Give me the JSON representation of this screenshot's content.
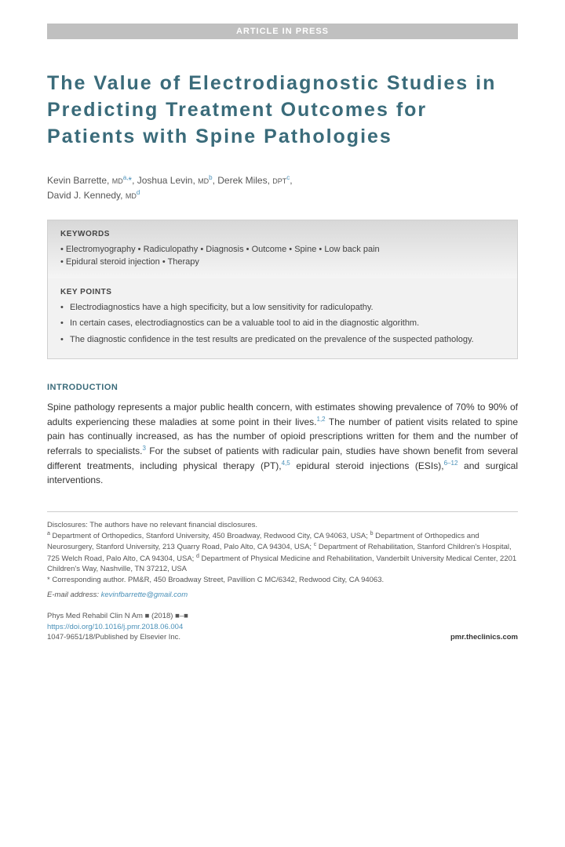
{
  "banner": "ARTICLE IN PRESS",
  "title": "The Value of Electrodiagnostic Studies in Predicting Treatment Outcomes for Patients with Spine Pathologies",
  "authors": [
    {
      "name": "Kevin Barrette",
      "degree": "MD",
      "aff": "a,",
      "star": "*"
    },
    {
      "name": "Joshua Levin",
      "degree": "MD",
      "aff": "b",
      "star": ""
    },
    {
      "name": "Derek Miles",
      "degree": "DPT",
      "aff": "c",
      "star": ""
    },
    {
      "name": "David J. Kennedy",
      "degree": "MD",
      "aff": "d",
      "star": ""
    }
  ],
  "keywords_heading": "KEYWORDS",
  "keywords": [
    "Electromyography",
    "Radiculopathy",
    "Diagnosis",
    "Outcome",
    "Spine",
    "Low back pain",
    "Epidural steroid injection",
    "Therapy"
  ],
  "keypoints_heading": "KEY POINTS",
  "keypoints": [
    "Electrodiagnostics have a high specificity, but a low sensitivity for radiculopathy.",
    "In certain cases, electrodiagnostics can be a valuable tool to aid in the diagnostic algorithm.",
    "The diagnostic confidence in the test results are predicated on the prevalence of the suspected pathology."
  ],
  "intro_heading": "INTRODUCTION",
  "intro_parts": {
    "p1": "Spine pathology represents a major public health concern, with estimates showing prevalence of 70% to 90% of adults experiencing these maladies at some point in their lives.",
    "ref1": "1,2",
    "p2": " The number of patient visits related to spine pain has continually increased, as has the number of opioid prescriptions written for them and the number of referrals to specialists.",
    "ref2": "3",
    "p3": " For the subset of patients with radicular pain, studies have shown benefit from several different treatments, including physical therapy (PT),",
    "ref3": "4,5",
    "p4": " epidural steroid injections (ESIs),",
    "ref4": "6–12",
    "p5": " and surgical interventions."
  },
  "footer": {
    "disclosure": "Disclosures: The authors have no relevant financial disclosures.",
    "aff_a": " Department of Orthopedics, Stanford University, 450 Broadway, Redwood City, CA 94063, USA; ",
    "aff_b": " Department of Orthopedics and Neurosurgery, Stanford University, 213 Quarry Road, Palo Alto, CA 94304, USA; ",
    "aff_c": " Department of Rehabilitation, Stanford Children's Hospital, 725 Welch Road, Palo Alto, CA 94304, USA; ",
    "aff_d": " Department of Physical Medicine and Rehabilitation, Vanderbilt University Medical Center, 2201 Children's Way, Nashville, TN 37212, USA",
    "corresponding": "* Corresponding author. PM&R, 450 Broadway Street, Pavillion C MC/6342, Redwood City, CA 94063.",
    "email_label": "E-mail address: ",
    "email": "kevinfbarrette@gmail.com"
  },
  "journal": {
    "line1": "Phys Med Rehabil Clin N Am ■ (2018) ■–■",
    "doi": "https://doi.org/10.1016/j.pmr.2018.06.004",
    "line3": "1047-9651/18/Published by Elsevier Inc.",
    "site": "pmr.theclinics.com"
  },
  "colors": {
    "heading": "#3a6b7a",
    "link": "#4a90b8",
    "banner_bg": "#c0c0c0",
    "box_bg": "#f2f2f2"
  }
}
